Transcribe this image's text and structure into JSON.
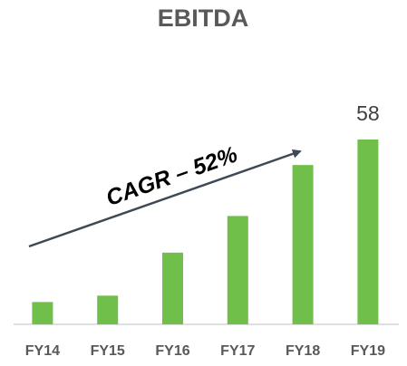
{
  "chart_data": {
    "type": "bar",
    "title": "EBITDA",
    "categories": [
      "FY14",
      "FY15",
      "FY16",
      "FY17",
      "FY18",
      "FY19"
    ],
    "values": [
      7,
      9,
      22.5,
      34,
      50,
      58
    ],
    "value_labels": [
      null,
      null,
      null,
      null,
      null,
      "58"
    ],
    "color": "#70bf4a",
    "annotations": [
      "CAGR – 52%"
    ]
  }
}
